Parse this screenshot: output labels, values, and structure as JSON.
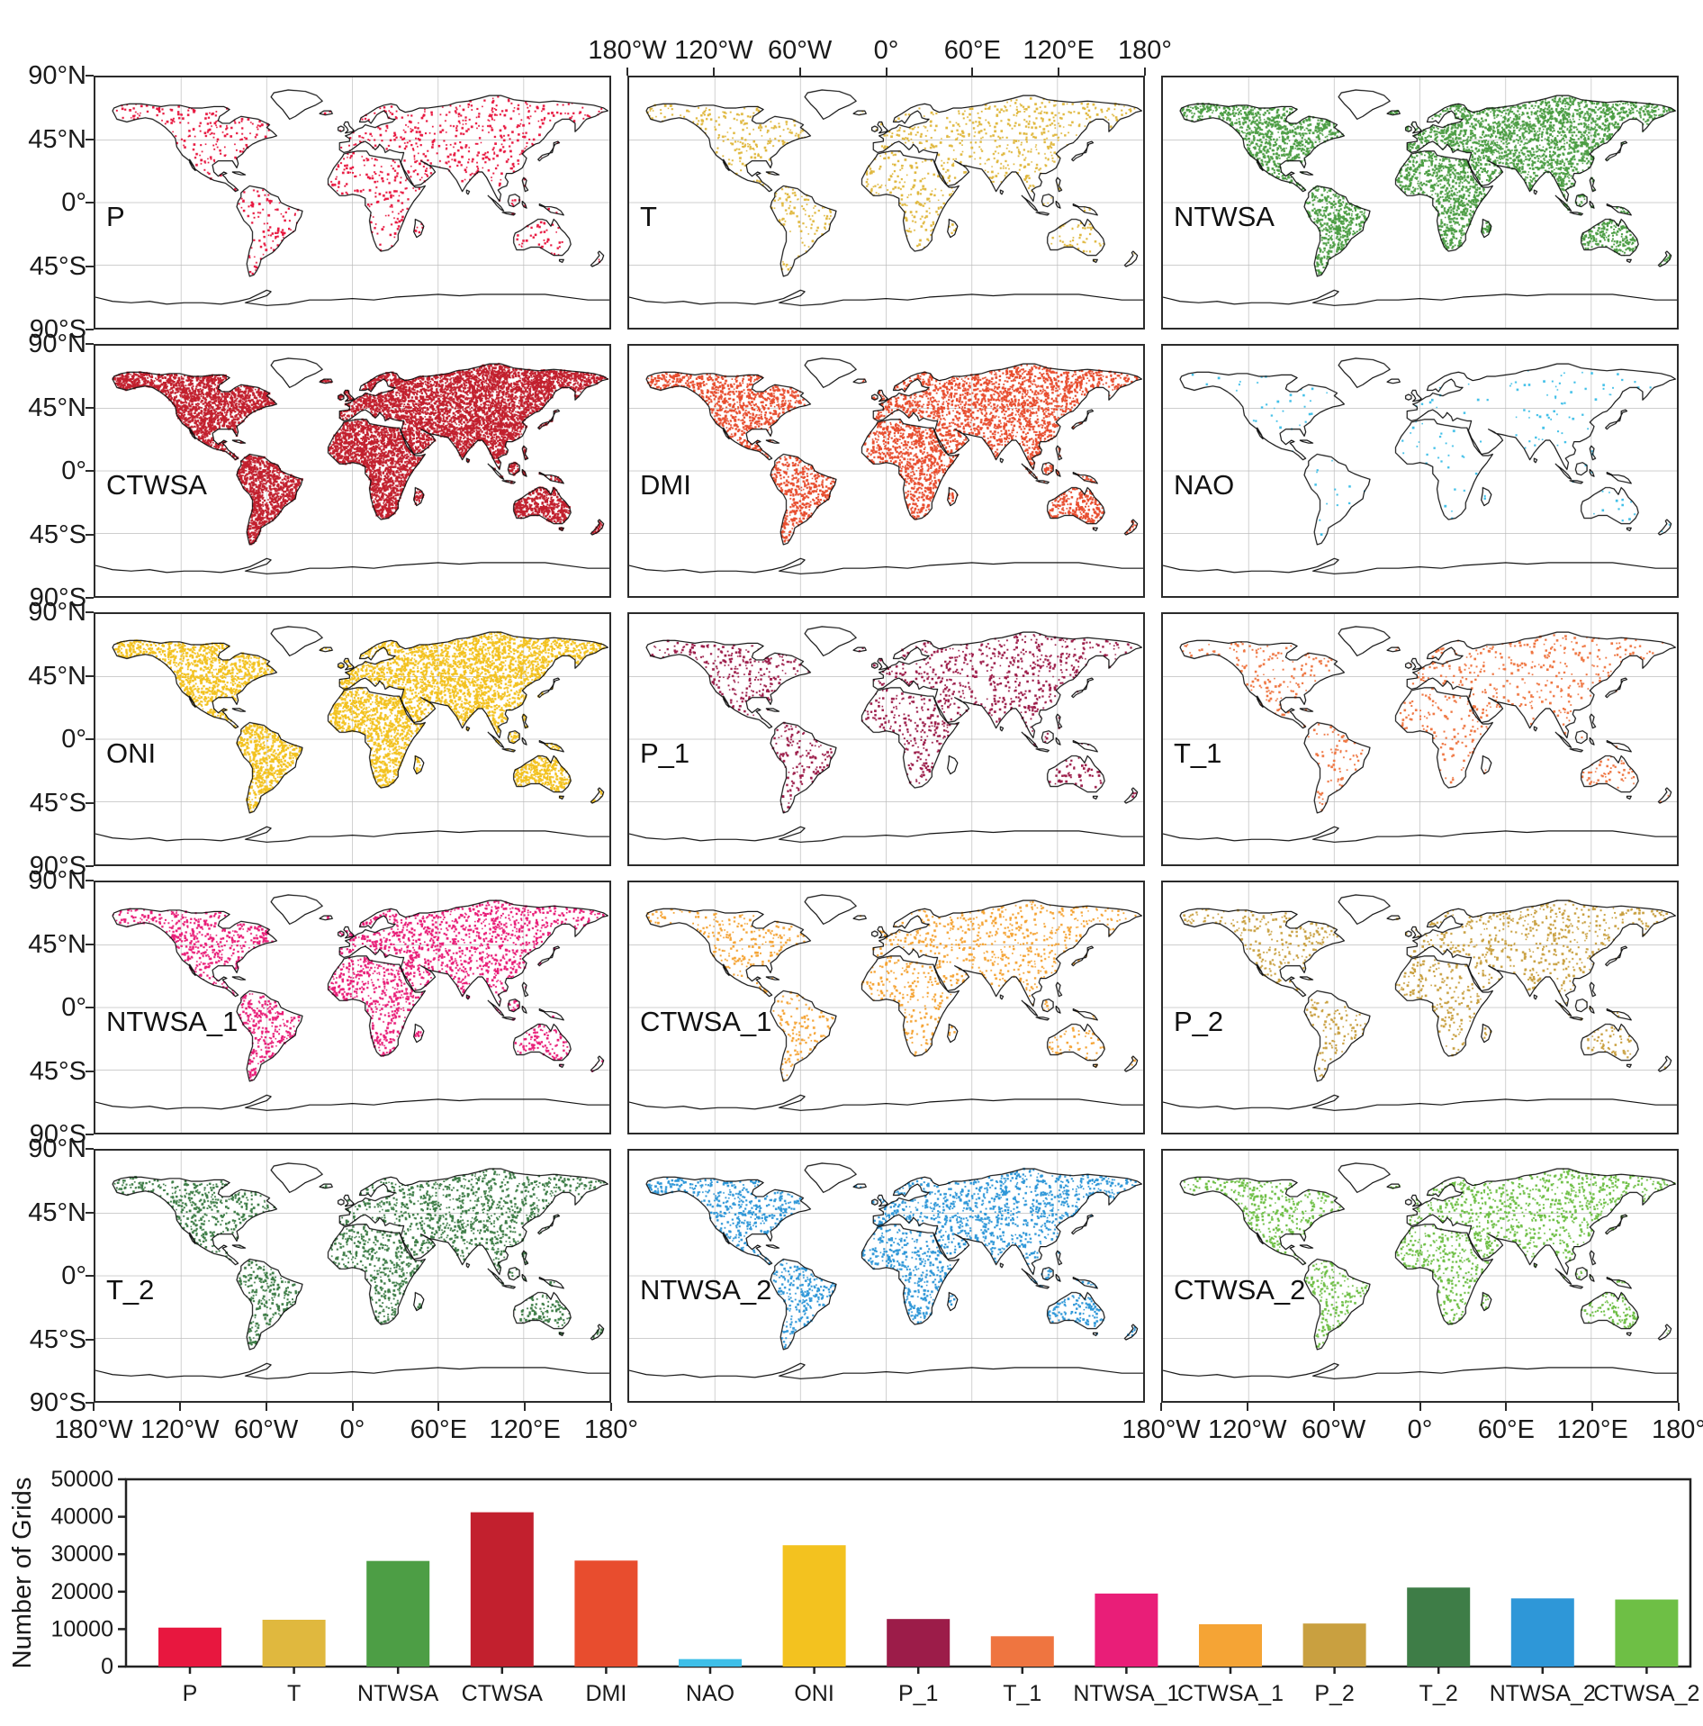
{
  "figure": {
    "maps": {
      "lon_tick_labels": [
        "180°W",
        "120°W",
        "60°W",
        "0°",
        "60°E",
        "120°E",
        "180°"
      ],
      "lat_tick_labels": [
        "90°N",
        "45°N",
        "0°",
        "45°S",
        "90°S"
      ],
      "grid_rows": 5,
      "grid_cols": 3,
      "panels": [
        {
          "label": "P",
          "color": "#e8173f",
          "dot_density": 950
        },
        {
          "label": "T",
          "color": "#e0b83e",
          "dot_density": 1050
        },
        {
          "label": "NTWSA",
          "color": "#4d9e45",
          "dot_density": 4200
        },
        {
          "label": "CTWSA",
          "color": "#c2202e",
          "dot_density": 9000
        },
        {
          "label": "DMI",
          "color": "#e84d2e",
          "dot_density": 4000
        },
        {
          "label": "NAO",
          "color": "#3ebfe8",
          "dot_density": 170
        },
        {
          "label": "ONI",
          "color": "#f3c21f",
          "dot_density": 5200
        },
        {
          "label": "P_1",
          "color": "#9c1c49",
          "dot_density": 1250
        },
        {
          "label": "T_1",
          "color": "#ef7540",
          "dot_density": 750
        },
        {
          "label": "NTWSA_1",
          "color": "#e91e78",
          "dot_density": 2300
        },
        {
          "label": "CTWSA_1",
          "color": "#f5a435",
          "dot_density": 1150
        },
        {
          "label": "P_2",
          "color": "#c9a040",
          "dot_density": 1100
        },
        {
          "label": "T_2",
          "color": "#3e7d47",
          "dot_density": 2100
        },
        {
          "label": "NTWSA_2",
          "color": "#2e97d8",
          "dot_density": 2100
        },
        {
          "label": "CTWSA_2",
          "color": "#6ebf45",
          "dot_density": 1700
        }
      ]
    }
  },
  "chart_data": {
    "type": "bar",
    "title": "",
    "xlabel": "",
    "ylabel": "Number of Grids",
    "ylim": [
      0,
      50000
    ],
    "yticks": [
      0,
      10000,
      20000,
      30000,
      40000,
      50000
    ],
    "grid": false,
    "legend": null,
    "categories": [
      "P",
      "T",
      "NTWSA",
      "CTWSA",
      "DMI",
      "NAO",
      "ONI",
      "P_1",
      "T_1",
      "NTWSA_1",
      "CTWSA_1",
      "P_2",
      "T_2",
      "NTWSA_2",
      "CTWSA_2"
    ],
    "values": [
      10400,
      12500,
      28200,
      41200,
      28300,
      2000,
      32400,
      12700,
      8100,
      19500,
      11300,
      11500,
      21100,
      18200,
      17900
    ],
    "colors": [
      "#e8173f",
      "#e0b83e",
      "#4d9e45",
      "#c2202e",
      "#e84d2e",
      "#3ebfe8",
      "#f3c21f",
      "#9c1c49",
      "#ef7540",
      "#e91e78",
      "#f5a435",
      "#c9a040",
      "#3e7d47",
      "#2e97d8",
      "#6ebf45"
    ]
  }
}
